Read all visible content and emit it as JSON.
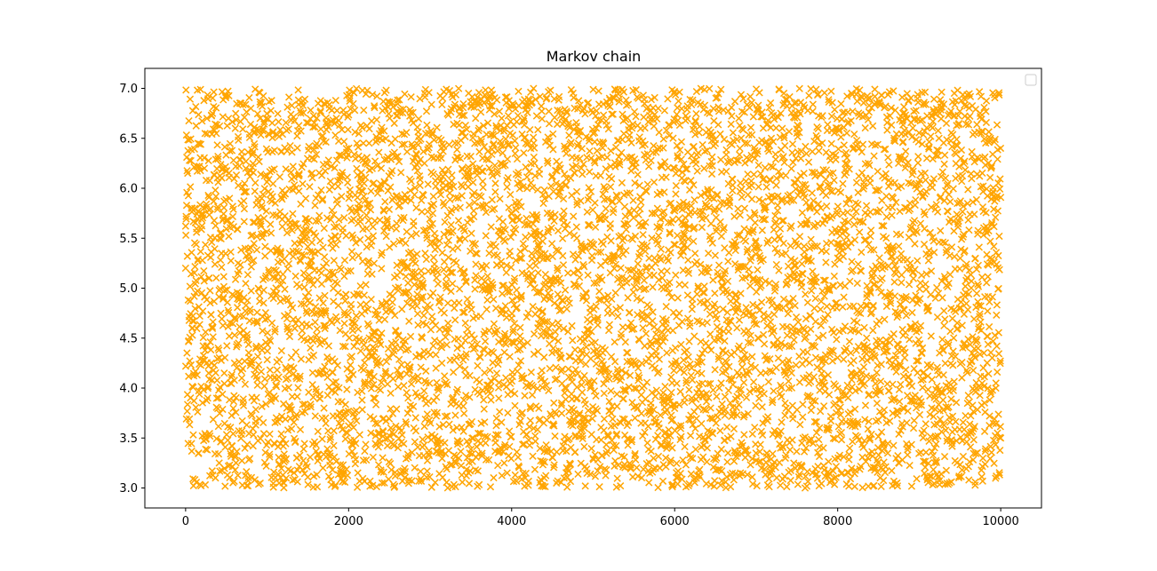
{
  "chart_data": {
    "type": "scatter",
    "title": "Markov chain",
    "xlabel": "",
    "ylabel": "",
    "xlim": [
      -500,
      10500
    ],
    "ylim": [
      2.8,
      7.2
    ],
    "xticks": [
      0,
      2000,
      4000,
      6000,
      8000,
      10000
    ],
    "xtick_labels": [
      "0",
      "2000",
      "4000",
      "6000",
      "8000",
      "10000"
    ],
    "yticks": [
      3.0,
      3.5,
      4.0,
      4.5,
      5.0,
      5.5,
      6.0,
      6.5,
      7.0
    ],
    "ytick_labels": [
      "3.0",
      "3.5",
      "4.0",
      "4.5",
      "5.0",
      "5.5",
      "6.0",
      "6.5",
      "7.0"
    ],
    "grid": false,
    "legend": {
      "placement": "top-right",
      "entries": []
    },
    "marker": "x",
    "color": "#ffa500",
    "series": [
      {
        "x_range": [
          0,
          10000
        ],
        "y_range": [
          3.0,
          7.0
        ],
        "n_points": 10001,
        "distribution": "approximately uniform over the y range across all x",
        "x": [
          0,
          400,
          800,
          1200,
          1600,
          2000,
          2400,
          2800,
          3200,
          3600,
          4000,
          4400,
          4800,
          5200,
          5600,
          6000,
          6400,
          6800,
          7200,
          7600,
          8000,
          8400,
          8800,
          9200,
          9600,
          10000
        ],
        "y": [
          5.2,
          4.4,
          6.8,
          3.3,
          5.9,
          4.1,
          6.2,
          3.6,
          5.0,
          6.6,
          4.7,
          3.1,
          5.5,
          6.9,
          4.0,
          5.8,
          3.4,
          6.4,
          4.6,
          3.0,
          5.3,
          6.1,
          3.8,
          4.9,
          6.7,
          3.5
        ]
      }
    ]
  }
}
